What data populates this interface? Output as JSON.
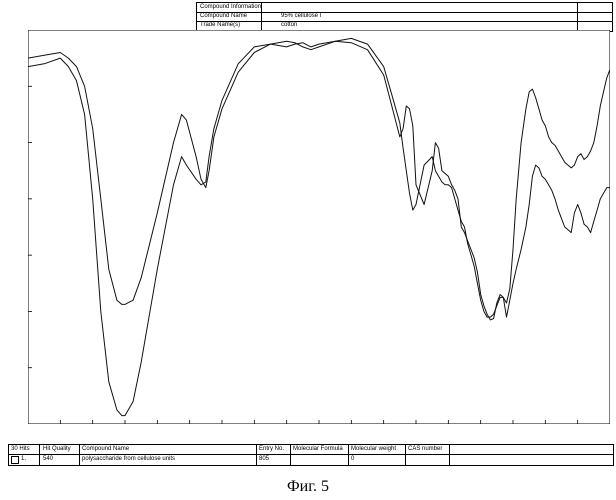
{
  "info": {
    "header": "Compound Information",
    "name_label": "Compound Name",
    "name_value": "95% cellulose I",
    "trade_label": "Trade Name(s)",
    "trade_value": "cotton"
  },
  "results": {
    "headers": [
      "30 Hits",
      "Hit Quality",
      "Compound Name",
      "Entry No.",
      "Molecular Formula",
      "Molecular weight",
      "CAS number"
    ],
    "row": [
      "1.",
      "540",
      "polysaccharide from cellulose units",
      "805",
      "",
      "0",
      ""
    ]
  },
  "caption": "Фиг. 5",
  "chart_data": {
    "type": "line",
    "xlabel": "",
    "ylabel": "",
    "xlim": [
      4000,
      400
    ],
    "ylim": [
      -40,
      100
    ],
    "x_ticks": [
      "4000",
      "3800",
      "3600",
      "3400",
      "3200",
      "3000",
      "2800",
      "2600",
      "2400",
      "2200",
      "2000",
      "1800",
      "1600",
      "1400",
      "1200",
      "1000",
      "800",
      "600",
      "400"
    ],
    "y_ticks": [
      "100,00",
      "80,00",
      "60,00",
      "40,00",
      "20,00",
      "0,00",
      "-20,00"
    ],
    "series": [
      {
        "name": "",
        "x": [
          4000,
          3900,
          3800,
          3750,
          3700,
          3650,
          3600,
          3550,
          3500,
          3450,
          3420,
          3400,
          3350,
          3300,
          3200,
          3100,
          3050,
          3020,
          2960,
          2930,
          2900,
          2880,
          2850,
          2800,
          2700,
          2600,
          2500,
          2400,
          2350,
          2300,
          2250,
          2200,
          2100,
          2000,
          1900,
          1800,
          1750,
          1700,
          1680,
          1660,
          1640,
          1620,
          1600,
          1550,
          1500,
          1480,
          1460,
          1440,
          1420,
          1400,
          1380,
          1360,
          1340,
          1320,
          1300,
          1280,
          1260,
          1240,
          1220,
          1200,
          1180,
          1160,
          1140,
          1120,
          1100,
          1080,
          1060,
          1040,
          1020,
          1000,
          980,
          950,
          920,
          900,
          880,
          860,
          840,
          820,
          800,
          780,
          760,
          740,
          720,
          700,
          680,
          660,
          640,
          620,
          600,
          580,
          560,
          540,
          520,
          500,
          480,
          460,
          440,
          420,
          400
        ],
        "y": [
          90,
          91,
          92,
          90,
          87,
          80,
          65,
          40,
          15,
          4,
          2.5,
          2.5,
          4,
          12,
          35,
          60,
          70,
          68,
          55,
          47,
          44,
          50,
          62,
          72,
          85,
          92,
          95,
          96,
          95.5,
          94,
          93,
          94,
          96,
          95.5,
          93,
          84,
          73,
          62,
          65,
          73,
          72,
          66,
          45,
          38,
          50,
          60,
          58,
          50,
          49,
          48,
          45,
          43,
          40,
          30,
          28,
          25,
          22,
          19,
          14,
          6,
          2,
          -1,
          -3,
          -2.5,
          3,
          6,
          5,
          -2,
          4,
          10,
          15,
          22,
          30,
          38,
          48,
          52,
          51,
          48,
          47,
          45,
          43,
          40,
          36,
          33,
          30,
          29,
          28,
          35,
          38,
          35,
          31,
          30,
          28,
          32,
          36,
          40,
          42,
          44,
          44
        ]
      },
      {
        "name": "",
        "x": [
          4000,
          3900,
          3800,
          3750,
          3700,
          3650,
          3600,
          3550,
          3500,
          3450,
          3420,
          3400,
          3350,
          3300,
          3200,
          3100,
          3050,
          3020,
          2960,
          2930,
          2900,
          2880,
          2850,
          2800,
          2700,
          2600,
          2500,
          2400,
          2350,
          2300,
          2250,
          2200,
          2100,
          2000,
          1900,
          1800,
          1750,
          1700,
          1680,
          1660,
          1640,
          1620,
          1600,
          1550,
          1500,
          1480,
          1460,
          1440,
          1420,
          1400,
          1380,
          1360,
          1340,
          1320,
          1300,
          1280,
          1260,
          1240,
          1220,
          1200,
          1180,
          1160,
          1140,
          1120,
          1100,
          1080,
          1060,
          1040,
          1020,
          1000,
          980,
          950,
          920,
          900,
          880,
          860,
          840,
          820,
          800,
          780,
          760,
          740,
          720,
          700,
          680,
          660,
          640,
          620,
          600,
          580,
          560,
          540,
          520,
          500,
          480,
          460,
          440,
          420,
          400
        ],
        "y": [
          87,
          88,
          90,
          87,
          82,
          70,
          40,
          0,
          -25,
          -35,
          -37,
          -37,
          -32,
          -18,
          15,
          45,
          55,
          52,
          47,
          45,
          46,
          55,
          65,
          75,
          88,
          94,
          95,
          94,
          95,
          95.5,
          94,
          95,
          96,
          97,
          95,
          87,
          77,
          67,
          58,
          50,
          42,
          36,
          38,
          52,
          55,
          50,
          48,
          46,
          45,
          45,
          44,
          40,
          36,
          32,
          30,
          24,
          20,
          16,
          10,
          4,
          0,
          -2,
          -2,
          -1,
          2,
          5,
          5,
          3,
          8,
          22,
          40,
          60,
          72,
          78,
          79,
          76,
          72,
          68,
          66,
          62,
          60,
          59,
          57,
          55,
          53,
          52,
          51,
          52,
          55,
          56,
          54,
          55,
          57,
          60,
          66,
          73,
          78,
          83,
          86
        ]
      }
    ]
  }
}
